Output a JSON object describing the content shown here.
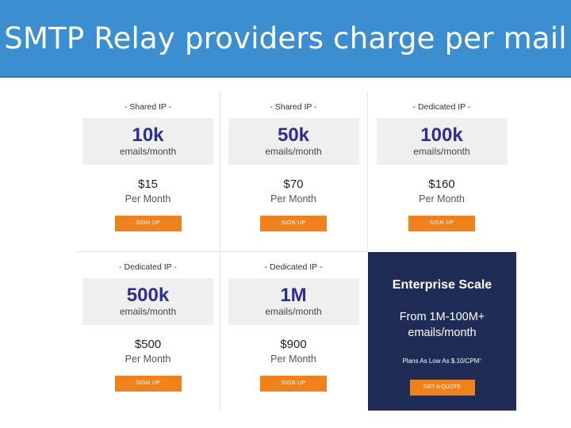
{
  "header": {
    "title": "SMTP Relay providers charge per mail"
  },
  "plans": [
    {
      "tier": "- Shared IP -",
      "volume": "10k",
      "unit": "emails/month",
      "price": "$15",
      "period": "Per Month",
      "button": "SIGN UP"
    },
    {
      "tier": "- Shared IP -",
      "volume": "50k",
      "unit": "emails/month",
      "price": "$70",
      "period": "Per Month",
      "button": "SIGN UP"
    },
    {
      "tier": "- Dedicated IP -",
      "volume": "100k",
      "unit": "emails/month",
      "price": "$160",
      "period": "Per Month",
      "button": "SIGN UP"
    },
    {
      "tier": "- Dedicated IP -",
      "volume": "500k",
      "unit": "emails/month",
      "price": "$500",
      "period": "Per Month",
      "button": "SIGN UP"
    },
    {
      "tier": "- Dedicated IP -",
      "volume": "1M",
      "unit": "emails/month",
      "price": "$900",
      "period": "Per Month",
      "button": "SIGN UP"
    }
  ],
  "enterprise": {
    "title": "Enterprise Scale",
    "range_line1": "From 1M-100M+",
    "range_line2": "emails/month",
    "plans_text": "Plans As Low As $.10/CPM",
    "asterisk": "*",
    "button": "GET A QUOTE"
  },
  "colors": {
    "banner": "#3b8fd0",
    "volume_text": "#2b2f8f",
    "button": "#f0821e",
    "enterprise_bg": "#1f2c56"
  }
}
